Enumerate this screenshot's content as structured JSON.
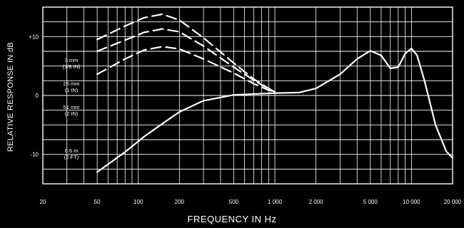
{
  "chart_data": {
    "type": "line",
    "xlabel": "FREQUENCY IN Hz",
    "ylabel": "RELATIVE RESPONSE IN dB",
    "x_scale": "log",
    "xlim": [
      20,
      20000
    ],
    "ylim": [
      -15,
      15
    ],
    "grid": true,
    "x_ticks": [
      {
        "value": 20,
        "label": "20"
      },
      {
        "value": 50,
        "label": "50"
      },
      {
        "value": 100,
        "label": "100"
      },
      {
        "value": 200,
        "label": "200"
      },
      {
        "value": 500,
        "label": "500"
      },
      {
        "value": 1000,
        "label": "1 000"
      },
      {
        "value": 2000,
        "label": "2 000"
      },
      {
        "value": 5000,
        "label": "5 000"
      },
      {
        "value": 10000,
        "label": "10 000"
      },
      {
        "value": 20000,
        "label": "20 000"
      }
    ],
    "y_ticks": [
      {
        "value": 10,
        "label": "+10"
      },
      {
        "value": 0,
        "label": "0"
      },
      {
        "value": -10,
        "label": "-10"
      }
    ],
    "series": [
      {
        "name": "3 mm (1/8 IN)",
        "style": "dashed",
        "points": [
          [
            50,
            9.5
          ],
          [
            80,
            11.8
          ],
          [
            110,
            13.2
          ],
          [
            150,
            13.8
          ],
          [
            200,
            12.8
          ],
          [
            300,
            9.8
          ],
          [
            500,
            5.5
          ],
          [
            700,
            2.8
          ],
          [
            900,
            1.2
          ],
          [
            1000,
            0.6
          ]
        ]
      },
      {
        "name": "25 mm (1 IN)",
        "style": "dashed",
        "points": [
          [
            50,
            7.5
          ],
          [
            80,
            9.4
          ],
          [
            110,
            10.7
          ],
          [
            150,
            11.3
          ],
          [
            200,
            10.8
          ],
          [
            300,
            8.4
          ],
          [
            500,
            4.8
          ],
          [
            700,
            2.6
          ],
          [
            900,
            1.1
          ],
          [
            1000,
            0.6
          ]
        ]
      },
      {
        "name": "51 mm (2 IN)",
        "style": "dashed",
        "points": [
          [
            50,
            3.6
          ],
          [
            80,
            6.2
          ],
          [
            110,
            7.7
          ],
          [
            150,
            8.3
          ],
          [
            200,
            7.9
          ],
          [
            300,
            6.2
          ],
          [
            500,
            3.8
          ],
          [
            700,
            2.0
          ],
          [
            900,
            0.9
          ],
          [
            1000,
            0.6
          ]
        ]
      },
      {
        "name": "0.6 m (2 FT)",
        "style": "solid",
        "points": [
          [
            50,
            -13
          ],
          [
            80,
            -9.6
          ],
          [
            110,
            -7
          ],
          [
            150,
            -4.8
          ],
          [
            200,
            -2.8
          ],
          [
            300,
            -0.9
          ],
          [
            500,
            0.1
          ],
          [
            1000,
            0.4
          ],
          [
            1500,
            0.5
          ],
          [
            2000,
            1.2
          ],
          [
            3000,
            3.6
          ],
          [
            4000,
            6.2
          ],
          [
            5000,
            7.6
          ],
          [
            6000,
            6.8
          ],
          [
            7000,
            4.6
          ],
          [
            8000,
            4.8
          ],
          [
            9000,
            7.1
          ],
          [
            10000,
            8
          ],
          [
            11000,
            6.8
          ],
          [
            12500,
            2.4
          ],
          [
            15000,
            -5
          ],
          [
            18000,
            -9.5
          ],
          [
            20000,
            -10.6
          ]
        ]
      }
    ]
  },
  "legend_labels": [
    {
      "series": 0,
      "text": "3 mm (1/8 IN)"
    },
    {
      "series": 1,
      "text": "25 mm (1 IN)"
    },
    {
      "series": 2,
      "text": "51 mm (2 IN)"
    },
    {
      "series": 3,
      "text": "0.6 m (2 FT)"
    }
  ]
}
